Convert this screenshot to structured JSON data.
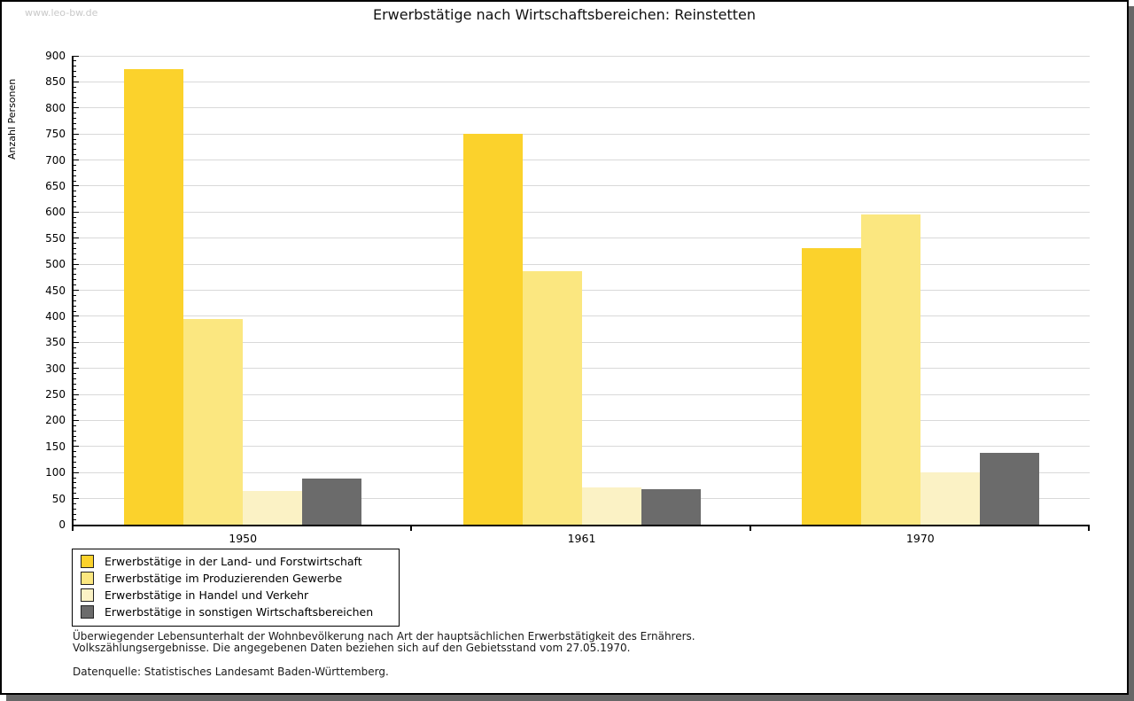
{
  "watermark": "www.leo-bw.de",
  "chart_data": {
    "type": "bar",
    "title": "Erwerbstätige nach Wirtschaftsbereichen: Reinstetten",
    "xlabel": "",
    "ylabel": "Anzahl Personen",
    "categories": [
      "1950",
      "1961",
      "1970"
    ],
    "series": [
      {
        "name": "Erwerbstätige in der Land- und Forstwirtschaft",
        "color": "#fbd22c",
        "values": [
          875,
          750,
          530
        ]
      },
      {
        "name": "Erwerbstätige im Produzierenden Gewerbe",
        "color": "#fbe780",
        "values": [
          395,
          487,
          595
        ]
      },
      {
        "name": "Erwerbstätige in Handel und Verkehr",
        "color": "#fbf2c5",
        "values": [
          65,
          71,
          100
        ]
      },
      {
        "name": "Erwerbstätige in sonstigen Wirtschaftsbereichen",
        "color": "#6b6b6b",
        "values": [
          88,
          68,
          138
        ]
      }
    ],
    "ylim": [
      0,
      900
    ],
    "ytick_step": 50,
    "y_minor_step": 10,
    "grid": true,
    "legend_position": "bottom-left"
  },
  "footnote_line1": "Überwiegender Lebensunterhalt der Wohnbevölkerung nach Art der hauptsächlichen Erwerbstätigkeit des Ernährers.",
  "footnote_line2": "Volkszählungsergebnisse. Die angegebenen Daten beziehen sich auf den Gebietsstand vom 27.05.1970.",
  "source": "Datenquelle: Statistisches Landesamt Baden-Württemberg."
}
